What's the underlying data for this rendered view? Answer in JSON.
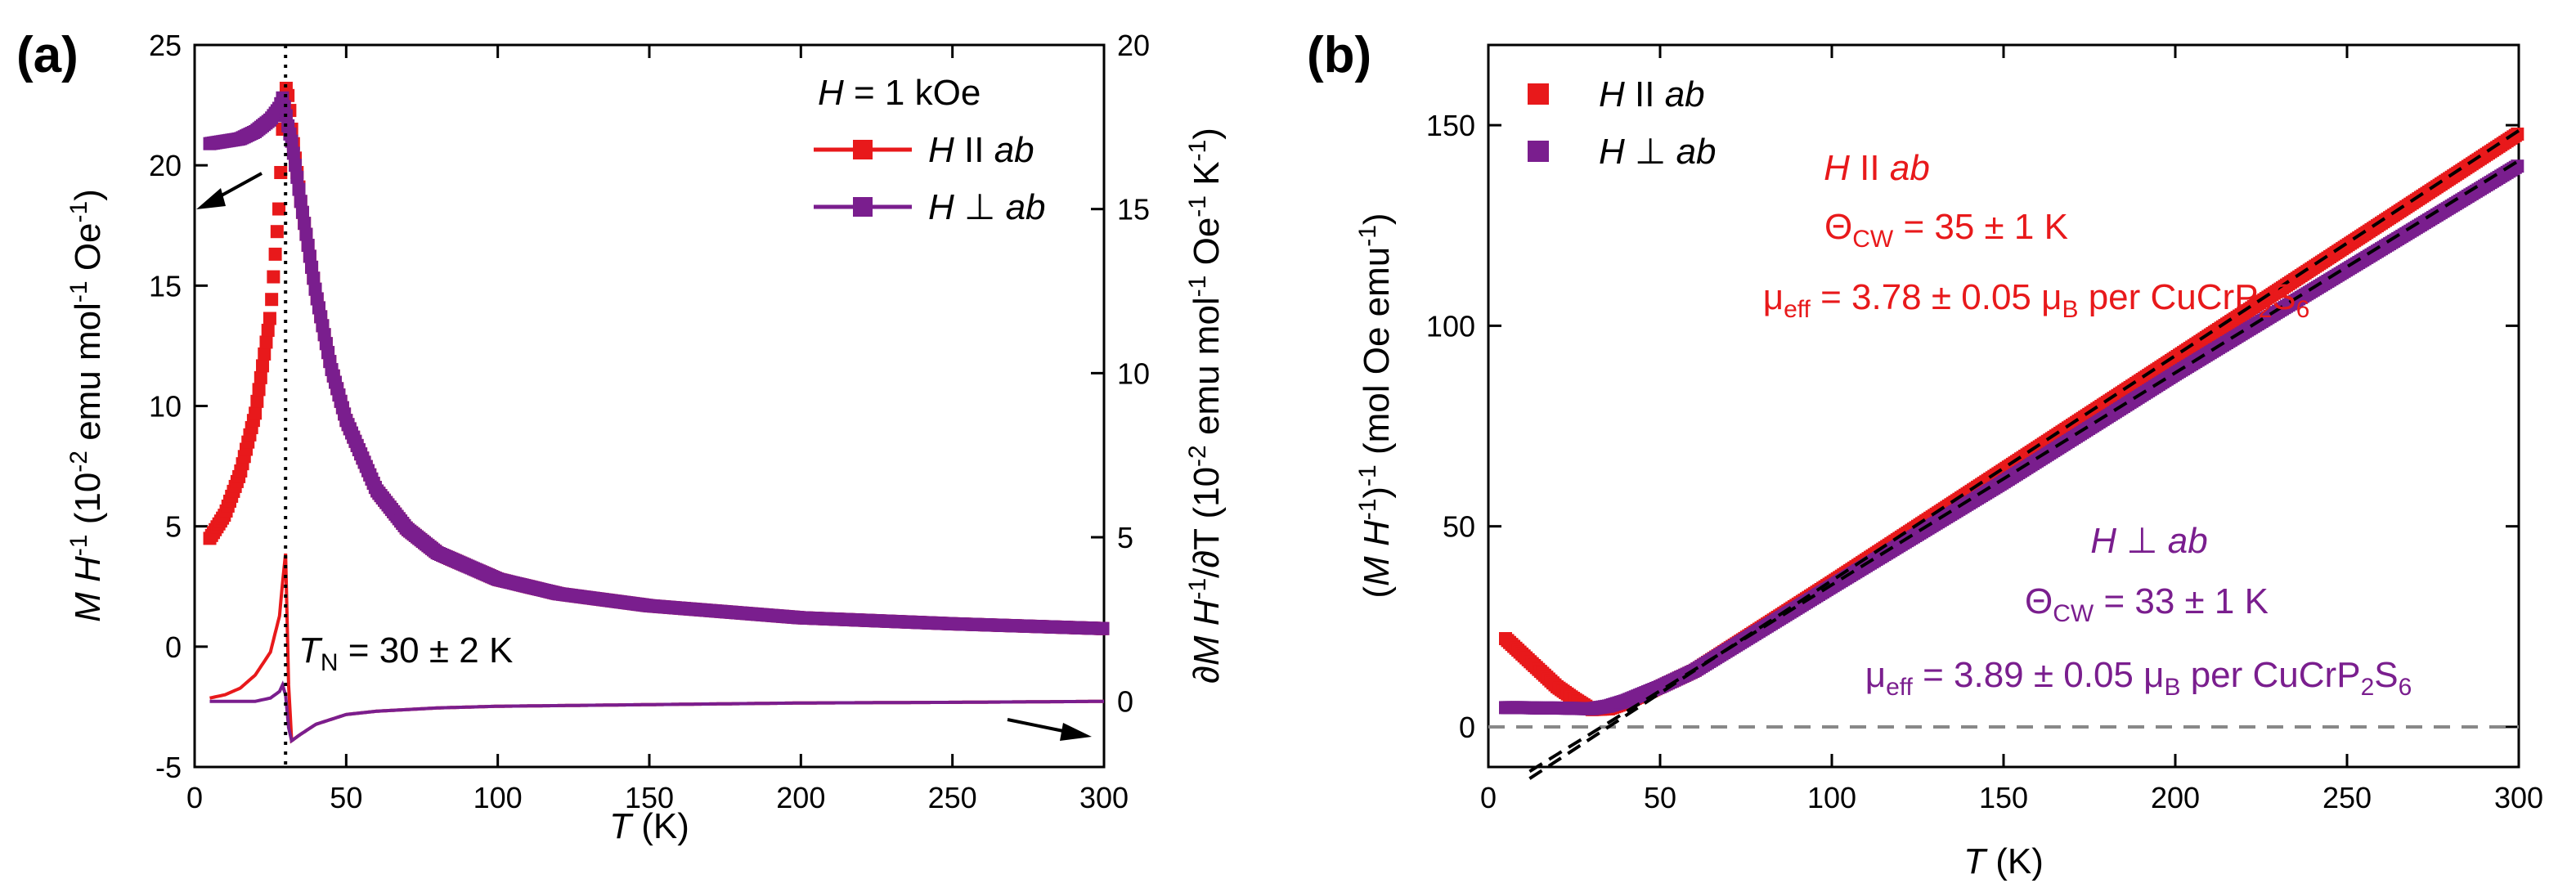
{
  "chart_data": [
    {
      "panel": "(a)",
      "type": "scatter",
      "xlabel": "T (K)",
      "ylabel_left": "M H-1 (10-2 emu mol-1 Oe-1)",
      "ylabel_right": "∂M H-1/∂T (10-2 emu mol-1 Oe-1 K-1)",
      "xlim": [
        0,
        300
      ],
      "ylim_left": [
        -5,
        25
      ],
      "ylim_right": [
        -2,
        20
      ],
      "xticks": [
        0,
        50,
        100,
        150,
        200,
        250,
        300
      ],
      "yticks_left": [
        -5,
        0,
        5,
        10,
        15,
        20,
        25
      ],
      "yticks_right": [
        0,
        5,
        10,
        15,
        20
      ],
      "legend_title": "H = 1 kOe",
      "legend": [
        "H II ab",
        "H ⊥ ab"
      ],
      "annotation": "TN = 30 ± 2 K",
      "TN": 30,
      "colors": {
        "para": "#e8191b",
        "perp": "#7a1e8e"
      },
      "series": [
        {
          "name": "H II ab",
          "axis": "left",
          "x": [
            5,
            10,
            15,
            20,
            25,
            28,
            29,
            30,
            31,
            32,
            35,
            40,
            45,
            50,
            60,
            70,
            80,
            100,
            120,
            150,
            200,
            250,
            300
          ],
          "y": [
            4.5,
            5.5,
            7.2,
            9.7,
            13.8,
            18.5,
            21.5,
            23.3,
            22.8,
            21.5,
            18.5,
            14.7,
            11.6,
            9.4,
            6.5,
            4.9,
            3.9,
            2.8,
            2.2,
            1.7,
            1.2,
            0.95,
            0.75
          ]
        },
        {
          "name": "H ⊥ ab",
          "axis": "left",
          "x": [
            5,
            10,
            15,
            20,
            25,
            28,
            29,
            30,
            31,
            32,
            35,
            40,
            45,
            50,
            60,
            70,
            80,
            100,
            120,
            150,
            200,
            250,
            300
          ],
          "y": [
            20.9,
            21.0,
            21.1,
            21.4,
            21.9,
            22.4,
            22.8,
            22.2,
            21.5,
            21.0,
            18.5,
            14.7,
            11.6,
            9.4,
            6.5,
            4.9,
            3.9,
            2.8,
            2.2,
            1.7,
            1.2,
            0.95,
            0.75
          ]
        },
        {
          "name": "dM/dT H II ab",
          "axis": "right",
          "x": [
            5,
            10,
            15,
            20,
            25,
            28,
            29,
            30,
            31,
            32,
            35,
            40,
            50,
            60,
            80,
            100,
            150,
            200,
            250,
            300
          ],
          "y": [
            0.1,
            0.2,
            0.4,
            0.8,
            1.5,
            2.6,
            3.6,
            4.5,
            0.5,
            -1.2,
            -1.0,
            -0.7,
            -0.4,
            -0.3,
            -0.2,
            -0.15,
            -0.1,
            -0.05,
            -0.03,
            0.0
          ]
        },
        {
          "name": "dM/dT H ⊥ ab",
          "axis": "right",
          "x": [
            5,
            10,
            20,
            25,
            28,
            29,
            30,
            31,
            32,
            35,
            40,
            50,
            60,
            80,
            100,
            150,
            200,
            250,
            300
          ],
          "y": [
            0.0,
            0.0,
            0.0,
            0.1,
            0.3,
            0.5,
            0.2,
            -0.8,
            -1.2,
            -1.0,
            -0.7,
            -0.4,
            -0.3,
            -0.2,
            -0.15,
            -0.1,
            -0.05,
            -0.03,
            0.0
          ]
        }
      ]
    },
    {
      "panel": "(b)",
      "type": "scatter",
      "xlabel": "T (K)",
      "ylabel": "(M H-1)-1 (mol Oe emu-1)",
      "xlim": [
        0,
        300
      ],
      "ylim": [
        -10,
        170
      ],
      "xticks": [
        0,
        50,
        100,
        150,
        200,
        250,
        300
      ],
      "yticks": [
        0,
        50,
        100,
        150
      ],
      "legend": [
        "H II ab",
        "H ⊥ ab"
      ],
      "fit_para": {
        "label": "H II ab",
        "theta": "ΘCW = 35 ± 1 K",
        "mu": "μeff = 3.78 ± 0.05 μB per CuCrP2S6",
        "theta_K": 35,
        "slope": 0.5609
      },
      "fit_perp": {
        "label": "H ⊥ ab",
        "theta": "ΘCW = 33 ± 1 K",
        "mu": "μeff = 3.89 ± 0.05 μB per CuCrP2S6",
        "theta_K": 33,
        "slope": 0.5286
      },
      "series": [
        {
          "name": "H II ab",
          "x": [
            5,
            10,
            15,
            20,
            25,
            30,
            35,
            40,
            50,
            60,
            80,
            100,
            150,
            200,
            250,
            300
          ],
          "y": [
            22,
            18,
            14,
            10,
            7,
            4.3,
            4.5,
            6,
            10,
            14,
            25,
            36,
            64,
            92,
            120,
            148
          ]
        },
        {
          "name": "H ⊥ ab",
          "x": [
            5,
            10,
            15,
            20,
            25,
            30,
            35,
            40,
            50,
            60,
            80,
            100,
            150,
            200,
            250,
            300
          ],
          "y": [
            4.8,
            4.8,
            4.7,
            4.7,
            4.6,
            4.5,
            5.2,
            6.5,
            10,
            14,
            24.5,
            35,
            61,
            88,
            114,
            140
          ]
        }
      ]
    }
  ]
}
